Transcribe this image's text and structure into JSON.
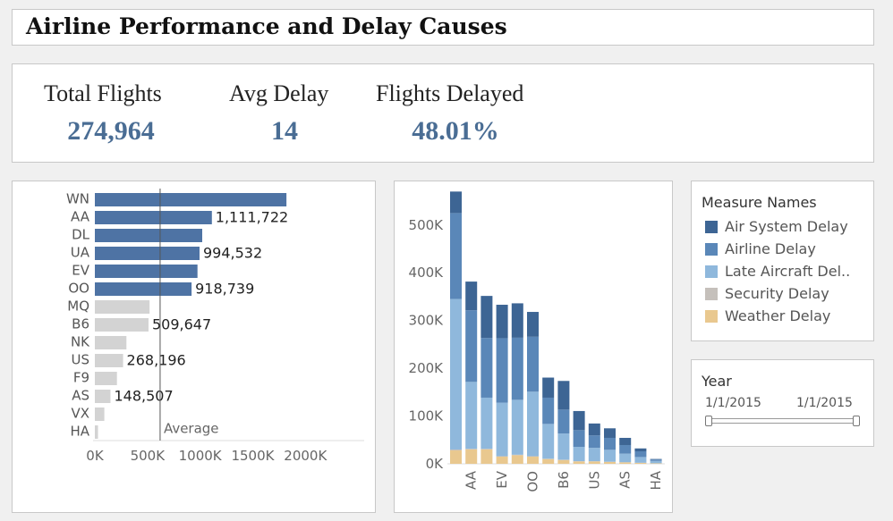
{
  "title": "Airline Performance and Delay Causes",
  "kpis": [
    {
      "label": "Total Flights",
      "value": "274,964"
    },
    {
      "label": "Avg Delay",
      "value": "14"
    },
    {
      "label": "Flights Delayed",
      "value": "48.01%"
    }
  ],
  "legend": {
    "title": "Measure Names",
    "items": [
      {
        "label": "Air System Delay",
        "color": "#3d6594"
      },
      {
        "label": "Airline Delay",
        "color": "#5a87b8"
      },
      {
        "label": "Late Aircraft Del..",
        "color": "#8fb8dc"
      },
      {
        "label": "Security Delay",
        "color": "#c5c0bb"
      },
      {
        "label": "Weather Delay",
        "color": "#e9c88f"
      }
    ]
  },
  "year_filter": {
    "title": "Year",
    "start": "1/1/2015",
    "end": "1/1/2015"
  },
  "chart_data": [
    {
      "type": "bar",
      "orientation": "horizontal",
      "categories": [
        "WN",
        "AA",
        "DL",
        "UA",
        "EV",
        "OO",
        "MQ",
        "B6",
        "NK",
        "US",
        "F9",
        "AS",
        "VX",
        "HA"
      ],
      "values": [
        1820000,
        1111722,
        1020000,
        994532,
        975000,
        918739,
        520000,
        509647,
        300000,
        268196,
        210000,
        148507,
        90000,
        30000
      ],
      "data_labels": {
        "AA": "1,111,722",
        "UA": "994,532",
        "OO": "918,739",
        "B6": "509,647",
        "US": "268,196",
        "AS": "148,507"
      },
      "highlight": [
        "WN",
        "AA",
        "DL",
        "UA",
        "EV",
        "OO"
      ],
      "highlight_color": "#4e73a4",
      "other_color": "#d3d3d3",
      "reference_line": {
        "label": "Average",
        "value": 620000
      },
      "x_ticks": [
        "0K",
        "500K",
        "1000K",
        "1500K",
        "2000K"
      ],
      "xlim": [
        0,
        2550000
      ]
    },
    {
      "type": "bar",
      "stacked": true,
      "categories": [
        "WN",
        "AA",
        "DL",
        "EV",
        "UA",
        "OO",
        "MQ",
        "B6",
        "NK",
        "US",
        "F9",
        "AS",
        "VX",
        "HA"
      ],
      "x_tick_labels": [
        "AA",
        "EV",
        "OO",
        "B6",
        "US",
        "AS",
        "HA"
      ],
      "series": [
        {
          "name": "Weather Delay",
          "values": [
            28000,
            30000,
            30000,
            15000,
            18000,
            15000,
            10000,
            8000,
            5000,
            5000,
            4000,
            3000,
            2000,
            1000
          ]
        },
        {
          "name": "Security Delay",
          "values": [
            2000,
            1500,
            1500,
            1000,
            1000,
            1000,
            500,
            500,
            500,
            400,
            300,
            300,
            200,
            100
          ]
        },
        {
          "name": "Late Aircraft Delay",
          "values": [
            315000,
            140000,
            107000,
            112000,
            115000,
            135000,
            73000,
            55000,
            30000,
            28000,
            25000,
            18000,
            12000,
            5000
          ]
        },
        {
          "name": "Airline Delay",
          "values": [
            180000,
            150000,
            125000,
            135000,
            130000,
            115000,
            55000,
            50000,
            35000,
            26000,
            25000,
            18000,
            12000,
            3000
          ]
        },
        {
          "name": "Air System Delay",
          "values": [
            45000,
            60000,
            88000,
            70000,
            72000,
            52000,
            42000,
            60000,
            40000,
            25000,
            20000,
            15000,
            6000,
            1000
          ]
        }
      ],
      "y_ticks": [
        "0K",
        "100K",
        "200K",
        "300K",
        "400K",
        "500K"
      ],
      "ylim": [
        0,
        580000
      ]
    }
  ]
}
